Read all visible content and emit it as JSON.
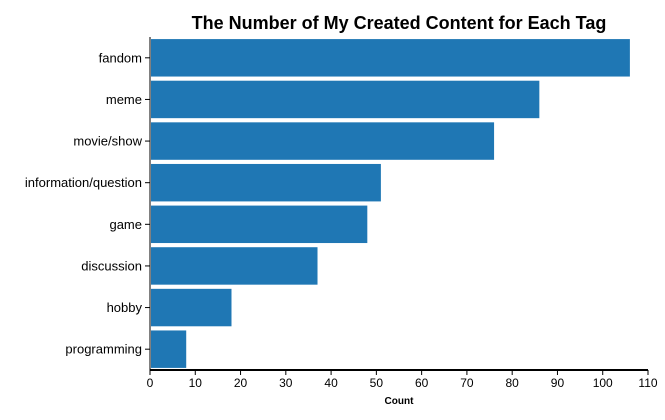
{
  "chart_data": {
    "type": "bar",
    "orientation": "horizontal",
    "title": "The Number of My Created Content for Each Tag",
    "xlabel": "Count",
    "ylabel": "",
    "categories": [
      "fandom",
      "meme",
      "movie/show",
      "information/question",
      "game",
      "discussion",
      "hobby",
      "programming"
    ],
    "values": [
      106,
      86,
      76,
      51,
      48,
      37,
      18,
      8
    ],
    "xlim": [
      0,
      110
    ],
    "xticks": [
      0,
      10,
      20,
      30,
      40,
      50,
      60,
      70,
      80,
      90,
      100,
      110
    ],
    "bar_color": "#1f77b4",
    "grid": false
  }
}
